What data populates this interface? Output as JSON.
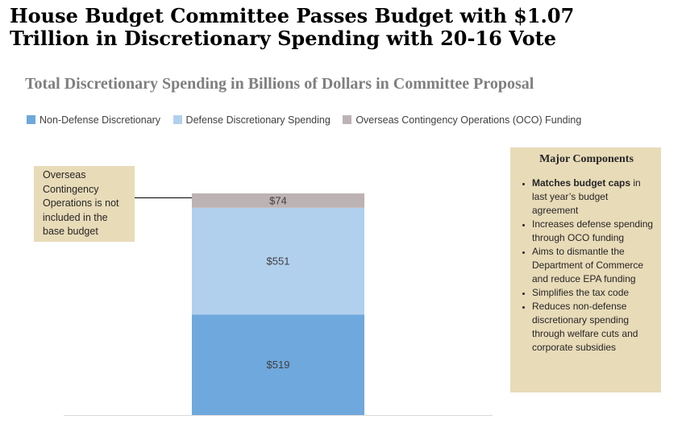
{
  "headline": {
    "line1": "House Budget Committee Passes Budget with $1.07",
    "line2": "Trillion in Discretionary Spending with 20-16 Vote"
  },
  "chart_data": {
    "type": "bar",
    "stacked": true,
    "title": "Total Discretionary Spending in Billions of Dollars in Committee Proposal",
    "categories": [
      ""
    ],
    "series": [
      {
        "name": "Non-Defense Discretionary",
        "values": [
          519
        ],
        "label": "$519",
        "color": "#6fa8dc"
      },
      {
        "name": "Defense Discretionary Spending",
        "values": [
          551
        ],
        "label": "$551",
        "color": "#b1d0ee"
      },
      {
        "name": "Overseas Contingency Operations (OCO) Funding",
        "values": [
          74
        ],
        "label": "$74",
        "color": "#bdb2b4"
      }
    ],
    "ylim": [
      0,
      1144
    ],
    "legend": "top",
    "grid": false
  },
  "callout": {
    "text": "Overseas Contingency Operations is not included in the base budget"
  },
  "components": {
    "title": "Major Components",
    "items": [
      {
        "bold": "Matches budget caps",
        "text": " in last year’s budget agreement"
      },
      {
        "bold": "",
        "text": "Increases defense spending through OCO funding"
      },
      {
        "bold": "",
        "text": "Aims to dismantle the Department of Commerce and reduce EPA funding"
      },
      {
        "bold": "",
        "text": "Simplifies the tax code"
      },
      {
        "bold": "",
        "text": "Reduces non-defense discretionary spending through welfare cuts and corporate subsidies"
      }
    ]
  }
}
